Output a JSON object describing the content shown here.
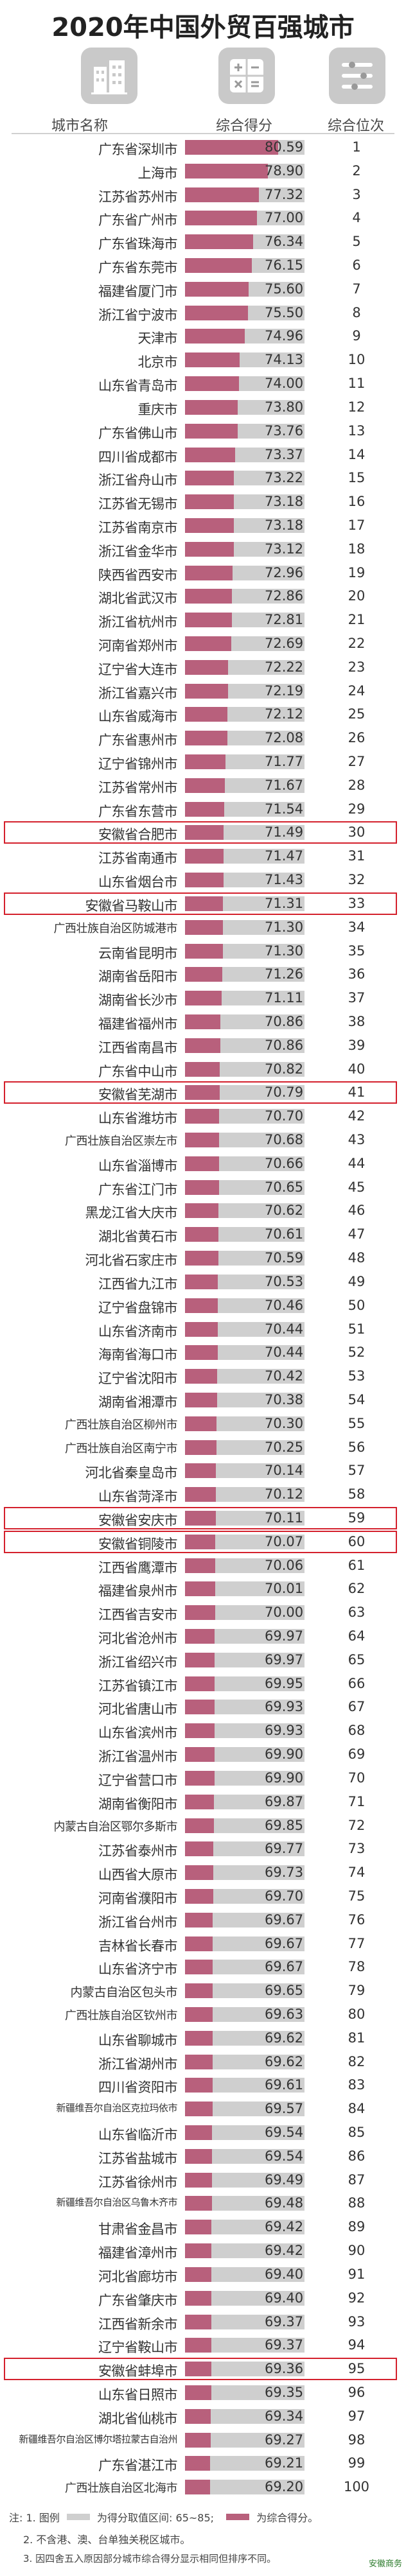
{
  "title": "2020年中国外贸百强城市",
  "headers": {
    "city": "城市名称",
    "score": "综合得分",
    "rank": "综合位次"
  },
  "colors": {
    "bar": "#b8607c",
    "bar_background": "#cfcfcf",
    "highlight": "#d4202c"
  },
  "icons": {
    "city": "city-buildings-icon",
    "score": "calculator-icon",
    "rank": "ranking-list-icon"
  },
  "legend": {
    "number": "注: 1. 图例",
    "grey_label": "为得分取值区间: 65~85;",
    "pink_label": "为综合得分。"
  },
  "notes": [
    "2. 不含港、澳、台单独关税区城市。",
    "3. 因四舍五入原因部分城市综合得分显示相同但排序不同。"
  ],
  "watermark": "安徽商务",
  "highlighted_ranks": [
    30,
    33,
    41,
    59,
    60,
    95
  ],
  "chart_data": {
    "type": "bar",
    "orientation": "horizontal",
    "title": "2020年中国外贸百强城市",
    "xlim": [
      65,
      85
    ],
    "grid": false,
    "rows": [
      {
        "city": "广东省深圳市",
        "score": "80.59",
        "rank": "1"
      },
      {
        "city": "上海市",
        "score": "78.90",
        "rank": "2"
      },
      {
        "city": "江苏省苏州市",
        "score": "77.32",
        "rank": "3"
      },
      {
        "city": "广东省广州市",
        "score": "77.00",
        "rank": "4"
      },
      {
        "city": "广东省珠海市",
        "score": "76.34",
        "rank": "5"
      },
      {
        "city": "广东省东莞市",
        "score": "76.15",
        "rank": "6"
      },
      {
        "city": "福建省厦门市",
        "score": "75.60",
        "rank": "7"
      },
      {
        "city": "浙江省宁波市",
        "score": "75.50",
        "rank": "8"
      },
      {
        "city": "天津市",
        "score": "74.96",
        "rank": "9"
      },
      {
        "city": "北京市",
        "score": "74.13",
        "rank": "10"
      },
      {
        "city": "山东省青岛市",
        "score": "74.00",
        "rank": "11"
      },
      {
        "city": "重庆市",
        "score": "73.80",
        "rank": "12"
      },
      {
        "city": "广东省佛山市",
        "score": "73.76",
        "rank": "13"
      },
      {
        "city": "四川省成都市",
        "score": "73.37",
        "rank": "14"
      },
      {
        "city": "浙江省舟山市",
        "score": "73.22",
        "rank": "15"
      },
      {
        "city": "江苏省无锡市",
        "score": "73.18",
        "rank": "16"
      },
      {
        "city": "江苏省南京市",
        "score": "73.18",
        "rank": "17"
      },
      {
        "city": "浙江省金华市",
        "score": "73.12",
        "rank": "18"
      },
      {
        "city": "陕西省西安市",
        "score": "72.96",
        "rank": "19"
      },
      {
        "city": "湖北省武汉市",
        "score": "72.86",
        "rank": "20"
      },
      {
        "city": "浙江省杭州市",
        "score": "72.81",
        "rank": "21"
      },
      {
        "city": "河南省郑州市",
        "score": "72.69",
        "rank": "22"
      },
      {
        "city": "辽宁省大连市",
        "score": "72.22",
        "rank": "23"
      },
      {
        "city": "浙江省嘉兴市",
        "score": "72.19",
        "rank": "24"
      },
      {
        "city": "山东省威海市",
        "score": "72.12",
        "rank": "25"
      },
      {
        "city": "广东省惠州市",
        "score": "72.08",
        "rank": "26"
      },
      {
        "city": "辽宁省锦州市",
        "score": "71.77",
        "rank": "27"
      },
      {
        "city": "江苏省常州市",
        "score": "71.67",
        "rank": "28"
      },
      {
        "city": "广东省东营市",
        "score": "71.54",
        "rank": "29"
      },
      {
        "city": "安徽省合肥市",
        "score": "71.49",
        "rank": "30"
      },
      {
        "city": "江苏省南通市",
        "score": "71.47",
        "rank": "31"
      },
      {
        "city": "山东省烟台市",
        "score": "71.43",
        "rank": "32"
      },
      {
        "city": "安徽省马鞍山市",
        "score": "71.31",
        "rank": "33"
      },
      {
        "city": "广西壮族自治区防城港市",
        "score": "71.30",
        "rank": "34"
      },
      {
        "city": "云南省昆明市",
        "score": "71.30",
        "rank": "35"
      },
      {
        "city": "湖南省岳阳市",
        "score": "71.26",
        "rank": "36"
      },
      {
        "city": "湖南省长沙市",
        "score": "71.11",
        "rank": "37"
      },
      {
        "city": "福建省福州市",
        "score": "70.86",
        "rank": "38"
      },
      {
        "city": "江西省南昌市",
        "score": "70.86",
        "rank": "39"
      },
      {
        "city": "广东省中山市",
        "score": "70.82",
        "rank": "40"
      },
      {
        "city": "安徽省芜湖市",
        "score": "70.79",
        "rank": "41"
      },
      {
        "city": "山东省潍坊市",
        "score": "70.70",
        "rank": "42"
      },
      {
        "city": "广西壮族自治区崇左市",
        "score": "70.68",
        "rank": "43"
      },
      {
        "city": "山东省淄博市",
        "score": "70.66",
        "rank": "44"
      },
      {
        "city": "广东省江门市",
        "score": "70.65",
        "rank": "45"
      },
      {
        "city": "黑龙江省大庆市",
        "score": "70.62",
        "rank": "46"
      },
      {
        "city": "湖北省黄石市",
        "score": "70.61",
        "rank": "47"
      },
      {
        "city": "河北省石家庄市",
        "score": "70.59",
        "rank": "48"
      },
      {
        "city": "江西省九江市",
        "score": "70.53",
        "rank": "49"
      },
      {
        "city": "辽宁省盘锦市",
        "score": "70.46",
        "rank": "50"
      },
      {
        "city": "山东省济南市",
        "score": "70.44",
        "rank": "51"
      },
      {
        "city": "海南省海口市",
        "score": "70.44",
        "rank": "52"
      },
      {
        "city": "辽宁省沈阳市",
        "score": "70.42",
        "rank": "53"
      },
      {
        "city": "湖南省湘潭市",
        "score": "70.38",
        "rank": "54"
      },
      {
        "city": "广西壮族自治区柳州市",
        "score": "70.30",
        "rank": "55"
      },
      {
        "city": "广西壮族自治区南宁市",
        "score": "70.25",
        "rank": "56"
      },
      {
        "city": "河北省秦皇岛市",
        "score": "70.14",
        "rank": "57"
      },
      {
        "city": "山东省菏泽市",
        "score": "70.12",
        "rank": "58"
      },
      {
        "city": "安徽省安庆市",
        "score": "70.11",
        "rank": "59"
      },
      {
        "city": "安徽省铜陵市",
        "score": "70.07",
        "rank": "60"
      },
      {
        "city": "江西省鹰潭市",
        "score": "70.06",
        "rank": "61"
      },
      {
        "city": "福建省泉州市",
        "score": "70.01",
        "rank": "62"
      },
      {
        "city": "江西省吉安市",
        "score": "70.00",
        "rank": "63"
      },
      {
        "city": "河北省沧州市",
        "score": "69.97",
        "rank": "64"
      },
      {
        "city": "浙江省绍兴市",
        "score": "69.97",
        "rank": "65"
      },
      {
        "city": "江苏省镇江市",
        "score": "69.95",
        "rank": "66"
      },
      {
        "city": "河北省唐山市",
        "score": "69.93",
        "rank": "67"
      },
      {
        "city": "山东省滨州市",
        "score": "69.93",
        "rank": "68"
      },
      {
        "city": "浙江省温州市",
        "score": "69.90",
        "rank": "69"
      },
      {
        "city": "辽宁省营口市",
        "score": "69.90",
        "rank": "70"
      },
      {
        "city": "湖南省衡阳市",
        "score": "69.87",
        "rank": "71"
      },
      {
        "city": "内蒙古自治区鄂尔多斯市",
        "score": "69.85",
        "rank": "72"
      },
      {
        "city": "江苏省泰州市",
        "score": "69.77",
        "rank": "73"
      },
      {
        "city": "山西省大原市",
        "score": "69.73",
        "rank": "74"
      },
      {
        "city": "河南省濮阳市",
        "score": "69.70",
        "rank": "75"
      },
      {
        "city": "浙江省台州市",
        "score": "69.67",
        "rank": "76"
      },
      {
        "city": "吉林省长春市",
        "score": "69.67",
        "rank": "77"
      },
      {
        "city": "山东省济宁市",
        "score": "69.67",
        "rank": "78"
      },
      {
        "city": "内蒙古自治区包头市",
        "score": "69.65",
        "rank": "79"
      },
      {
        "city": "广西壮族自治区钦州市",
        "score": "69.63",
        "rank": "80"
      },
      {
        "city": "山东省聊城市",
        "score": "69.62",
        "rank": "81"
      },
      {
        "city": "浙江省湖州市",
        "score": "69.62",
        "rank": "82"
      },
      {
        "city": "四川省资阳市",
        "score": "69.61",
        "rank": "83"
      },
      {
        "city": "新疆维吾尔自治区克拉玛依市",
        "score": "69.57",
        "rank": "84"
      },
      {
        "city": "山东省临沂市",
        "score": "69.54",
        "rank": "85"
      },
      {
        "city": "江苏省盐城市",
        "score": "69.54",
        "rank": "86"
      },
      {
        "city": "江苏省徐州市",
        "score": "69.49",
        "rank": "87"
      },
      {
        "city": "新疆维吾尔自治区乌鲁木齐市",
        "score": "69.48",
        "rank": "88"
      },
      {
        "city": "甘肃省金昌市",
        "score": "69.42",
        "rank": "89"
      },
      {
        "city": "福建省漳州市",
        "score": "69.42",
        "rank": "90"
      },
      {
        "city": "河北省廊坊市",
        "score": "69.40",
        "rank": "91"
      },
      {
        "city": "广东省肇庆市",
        "score": "69.40",
        "rank": "92"
      },
      {
        "city": "江西省新余市",
        "score": "69.37",
        "rank": "93"
      },
      {
        "city": "辽宁省鞍山市",
        "score": "69.37",
        "rank": "94"
      },
      {
        "city": "安徽省蚌埠市",
        "score": "69.36",
        "rank": "95"
      },
      {
        "city": "山东省日照市",
        "score": "69.35",
        "rank": "96"
      },
      {
        "city": "湖北省仙桃市",
        "score": "69.34",
        "rank": "97"
      },
      {
        "city": "新疆维吾尔自治区博尔塔拉蒙古自治州",
        "score": "69.27",
        "rank": "98"
      },
      {
        "city": "广东省湛江市",
        "score": "69.21",
        "rank": "99"
      },
      {
        "city": "广西壮族自治区北海市",
        "score": "69.20",
        "rank": "100"
      }
    ]
  }
}
